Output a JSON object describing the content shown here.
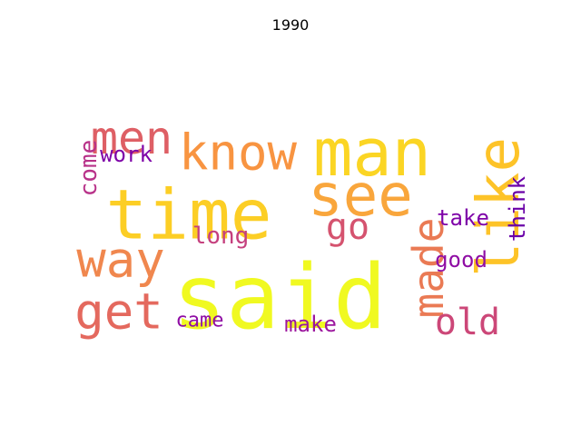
{
  "chart_data": {
    "type": "wordcloud",
    "title": "1990",
    "colormap": "plasma",
    "words": [
      {
        "text": "said",
        "weight": 1.0,
        "color": "#f0f921"
      },
      {
        "text": "time",
        "weight": 0.86,
        "color": "#fcce25"
      },
      {
        "text": "man",
        "weight": 0.8,
        "color": "#fbd524"
      },
      {
        "text": "like",
        "weight": 0.75,
        "color": "#fdc328"
      },
      {
        "text": "see",
        "weight": 0.7,
        "color": "#f9a63c"
      },
      {
        "text": "know",
        "weight": 0.62,
        "color": "#f89441"
      },
      {
        "text": "way",
        "weight": 0.6,
        "color": "#f0874e"
      },
      {
        "text": "get",
        "weight": 0.58,
        "color": "#e4695e"
      },
      {
        "text": "men",
        "weight": 0.55,
        "color": "#de5f65"
      },
      {
        "text": "made",
        "weight": 0.52,
        "color": "#ea7a54"
      },
      {
        "text": "old",
        "weight": 0.42,
        "color": "#cc4778"
      },
      {
        "text": "go",
        "weight": 0.4,
        "color": "#d5536f"
      },
      {
        "text": "long",
        "weight": 0.3,
        "color": "#c5407e"
      },
      {
        "text": "come",
        "weight": 0.28,
        "color": "#b83289"
      },
      {
        "text": "good",
        "weight": 0.28,
        "color": "#8f0da4"
      },
      {
        "text": "take",
        "weight": 0.27,
        "color": "#7e03a8"
      },
      {
        "text": "think",
        "weight": 0.27,
        "color": "#6a00a8"
      },
      {
        "text": "work",
        "weight": 0.26,
        "color": "#7e03a8"
      },
      {
        "text": "make",
        "weight": 0.26,
        "color": "#9c179e"
      },
      {
        "text": "came",
        "weight": 0.25,
        "color": "#8f0da4"
      }
    ]
  }
}
